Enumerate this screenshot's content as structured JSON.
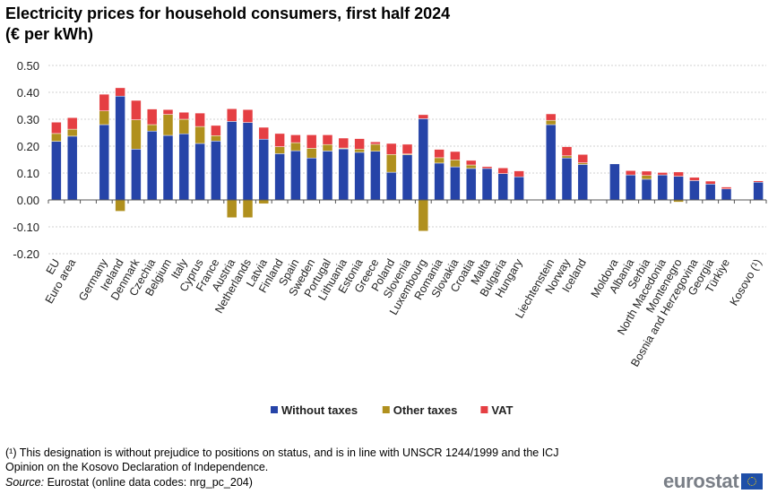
{
  "title_line1": "Electricity prices for household consumers, first half 2024",
  "title_line2": "(€ per kWh)",
  "footnote": "(¹) This designation is without prejudice to positions on status, and is in line with UNSCR  1244/1999 and the ICJ",
  "footnote2": "Opinion on the Kosovo Declaration of Independence.",
  "source_label": "Source:",
  "source_text": " Eurostat (online data codes: nrg_pc_204)",
  "logo_text": "eurostat",
  "chart_data": {
    "type": "bar",
    "stacked": true,
    "title": "Electricity prices for household consumers, first half 2024 (€ per kWh)",
    "ylim": [
      -0.2,
      0.5
    ],
    "yticks": [
      "0.50",
      "0.40",
      "0.30",
      "0.20",
      "0.10",
      "0.00",
      "-0.10",
      "-0.20"
    ],
    "grid": true,
    "legend_position": "bottom",
    "categories": [
      "EU",
      "Euro area",
      "",
      "Germany",
      "Ireland",
      "Denmark",
      "Czechia",
      "Belgium",
      "Italy",
      "Cyprus",
      "France",
      "Austria",
      "Netherlands",
      "Latvia",
      "Finland",
      "Spain",
      "Sweden",
      "Portugal",
      "Lithuania",
      "Estonia",
      "Greece",
      "Poland",
      "Slovenia",
      "Luxembourg",
      "Romania",
      "Slovakia",
      "Croatia",
      "Malta",
      "Bulgaria",
      "Hungary",
      "",
      "Liechtenstein",
      "Norway",
      "Iceland",
      "",
      "Moldova",
      "Albania",
      "Serbia",
      "North Macedonia",
      "Montenegro",
      "Bosnia and Herzegovina",
      "Georgia",
      "Türkiye",
      "",
      "Kosovo (¹)"
    ],
    "series": [
      {
        "name": "Without taxes",
        "color": "#2644a8",
        "values": [
          0.218,
          0.237,
          null,
          0.28,
          0.386,
          0.189,
          0.256,
          0.24,
          0.246,
          0.21,
          0.219,
          0.292,
          0.288,
          0.226,
          0.172,
          0.183,
          0.156,
          0.182,
          0.19,
          0.177,
          0.181,
          0.103,
          0.168,
          0.302,
          0.137,
          0.123,
          0.117,
          0.117,
          0.098,
          0.086,
          null,
          0.28,
          0.156,
          0.132,
          null,
          0.134,
          0.093,
          0.077,
          0.093,
          0.088,
          0.072,
          0.059,
          0.041,
          null,
          0.066
        ]
      },
      {
        "name": "Other taxes",
        "color": "#b0901e",
        "values": [
          0.029,
          0.026,
          null,
          0.051,
          -0.042,
          0.109,
          0.024,
          0.078,
          0.054,
          0.063,
          0.02,
          -0.066,
          -0.066,
          -0.014,
          0.026,
          0.03,
          0.036,
          0.024,
          0.003,
          0.012,
          0.026,
          0.066,
          0.003,
          -0.116,
          0.02,
          0.026,
          0.013,
          0.0,
          0.0,
          0.0,
          null,
          0.016,
          0.008,
          0.006,
          null,
          0.0,
          0.0,
          0.014,
          0.0,
          -0.008,
          0.0,
          0.0,
          0.0,
          null,
          0.0
        ]
      },
      {
        "name": "VAT",
        "color": "#e53f43",
        "values": [
          0.042,
          0.043,
          null,
          0.062,
          0.031,
          0.072,
          0.058,
          0.018,
          0.026,
          0.05,
          0.038,
          0.047,
          0.048,
          0.044,
          0.049,
          0.029,
          0.05,
          0.036,
          0.037,
          0.039,
          0.009,
          0.041,
          0.036,
          0.015,
          0.031,
          0.031,
          0.017,
          0.007,
          0.021,
          0.022,
          null,
          0.024,
          0.034,
          0.031,
          null,
          0.0,
          0.016,
          0.016,
          0.009,
          0.016,
          0.012,
          0.011,
          0.007,
          null,
          0.005
        ]
      }
    ]
  }
}
